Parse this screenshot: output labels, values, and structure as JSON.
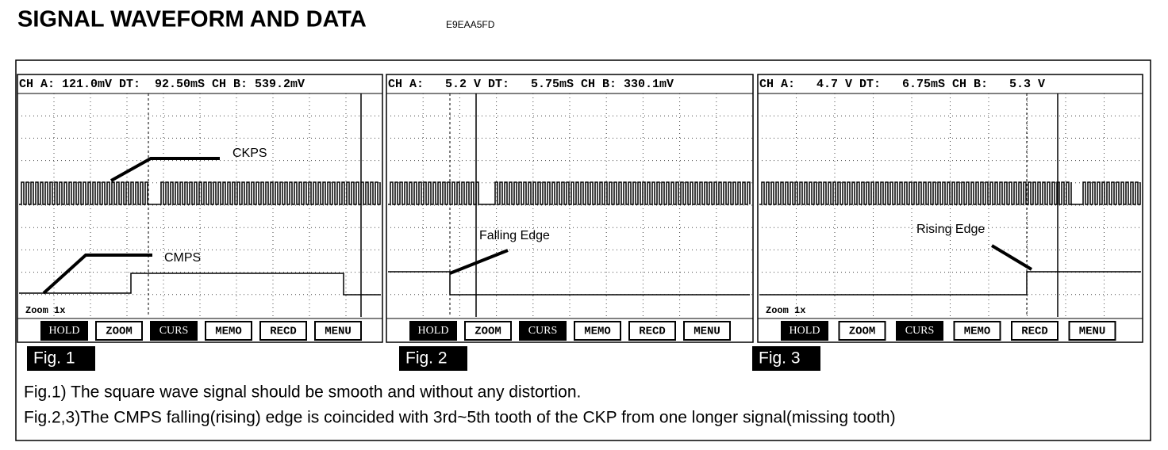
{
  "header": {
    "title": "SIGNAL WAVEFORM AND DATA",
    "code": "E9EAA5FD"
  },
  "panels": [
    {
      "readout": "CH A: 121.0mV DT:  92.50mS CH B: 539.2mV",
      "zoom": "Zoom 1x",
      "buttons": [
        "HOLD",
        "ZOOM",
        "CURS",
        "MEMO",
        "RECD",
        "MENU"
      ],
      "annotations": [
        "CKPS",
        "CMPS"
      ],
      "figure": "Fig. 1"
    },
    {
      "readout": "CH A:   5.2 V DT:   5.75mS CH B: 330.1mV",
      "buttons": [
        "HOLD",
        "ZOOM",
        "CURS",
        "MEMO",
        "RECD",
        "MENU"
      ],
      "annotations": [
        "Falling Edge"
      ],
      "figure": "Fig. 2"
    },
    {
      "readout": "CH A:   4.7 V DT:   6.75mS CH B:   5.3 V",
      "zoom": "Zoom 1x",
      "buttons": [
        "HOLD",
        "ZOOM",
        "CURS",
        "MEMO",
        "RECD",
        "MENU"
      ],
      "annotations": [
        "Rising Edge"
      ],
      "figure": "Fig. 3"
    }
  ],
  "captions": [
    "Fig.1) The square wave signal should be smooth and without any distortion.",
    "Fig.2,3)The CMPS falling(rising) edge is coincided with 3rd~5th tooth of the CKP from one longer signal(missing tooth)"
  ]
}
